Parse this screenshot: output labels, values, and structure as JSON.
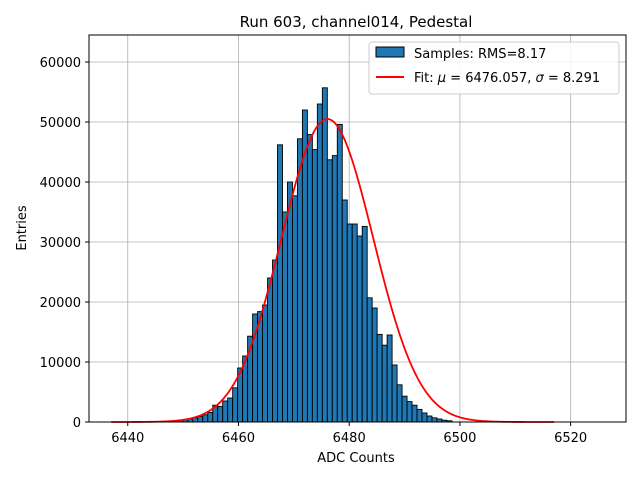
{
  "chart_data": {
    "type": "bar",
    "title": "Run 603, channel014, Pedestal",
    "xlabel": "ADC Counts",
    "ylabel": "Entries",
    "xlim": [
      6433,
      6530
    ],
    "ylim": [
      0,
      64500
    ],
    "xticks": [
      6440,
      6460,
      6480,
      6500,
      6520
    ],
    "yticks": [
      0,
      10000,
      20000,
      30000,
      40000,
      50000,
      60000
    ],
    "grid": true,
    "legend_position": "top-right",
    "colors": {
      "bar": "#1f77b4",
      "fit": "#ff0000",
      "edge": "#000000",
      "grid": "#b0b0b0"
    },
    "legend": {
      "hist_label": "Samples: RMS=8.17",
      "fit_label_prefix": "Fit: ",
      "mu_symbol": "μ",
      "mu_text": " = 6476.057, ",
      "sigma_symbol": "σ",
      "sigma_text": " = 8.291"
    },
    "histogram": {
      "bin_width": 0.9,
      "bins": [
        [
          6449.5,
          300
        ],
        [
          6450.4,
          400
        ],
        [
          6451.3,
          500
        ],
        [
          6452.2,
          700
        ],
        [
          6453.1,
          900
        ],
        [
          6454.0,
          1200
        ],
        [
          6454.9,
          1600
        ],
        [
          6455.8,
          2800
        ],
        [
          6456.7,
          2600
        ],
        [
          6457.6,
          3500
        ],
        [
          6458.5,
          4000
        ],
        [
          6459.4,
          5700
        ],
        [
          6460.3,
          9000
        ],
        [
          6461.2,
          11000
        ],
        [
          6462.1,
          14300
        ],
        [
          6463.0,
          18000
        ],
        [
          6463.9,
          18400
        ],
        [
          6464.8,
          19500
        ],
        [
          6465.7,
          24000
        ],
        [
          6466.6,
          27000
        ],
        [
          6467.5,
          46200
        ],
        [
          6468.4,
          35000
        ],
        [
          6469.3,
          40000
        ],
        [
          6470.2,
          37700
        ],
        [
          6471.1,
          47200
        ],
        [
          6472.0,
          52000
        ],
        [
          6472.9,
          47900
        ],
        [
          6473.8,
          45400
        ],
        [
          6474.7,
          53000
        ],
        [
          6475.6,
          55700
        ],
        [
          6476.5,
          43700
        ],
        [
          6477.4,
          44400
        ],
        [
          6478.3,
          49600
        ],
        [
          6479.2,
          37000
        ],
        [
          6480.1,
          33000
        ],
        [
          6481.0,
          33000
        ],
        [
          6481.9,
          31000
        ],
        [
          6482.8,
          32600
        ],
        [
          6483.7,
          20700
        ],
        [
          6484.6,
          19000
        ],
        [
          6485.5,
          14600
        ],
        [
          6486.4,
          12800
        ],
        [
          6487.3,
          14500
        ],
        [
          6488.2,
          9500
        ],
        [
          6489.1,
          6200
        ],
        [
          6490.0,
          4300
        ],
        [
          6490.9,
          3400
        ],
        [
          6491.8,
          2800
        ],
        [
          6492.7,
          2100
        ],
        [
          6493.6,
          1500
        ],
        [
          6494.5,
          1000
        ],
        [
          6495.4,
          700
        ],
        [
          6496.3,
          500
        ],
        [
          6497.2,
          300
        ],
        [
          6498.1,
          200
        ]
      ]
    },
    "fit": {
      "type": "gaussian",
      "mu": 6476.057,
      "sigma": 8.291,
      "amplitude": 50500,
      "x_range": [
        6437,
        6517
      ]
    }
  }
}
